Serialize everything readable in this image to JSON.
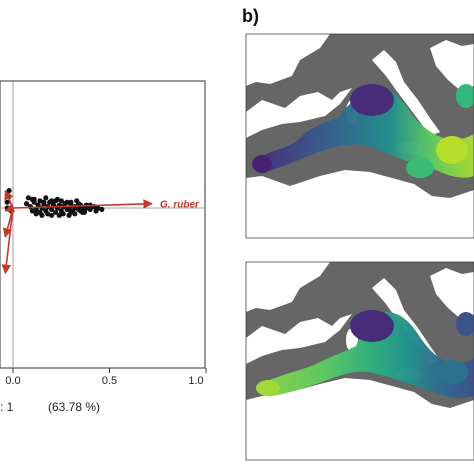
{
  "panel_b_label": "b)",
  "arrow_color": "#c0392b",
  "map_sea_color": "#666666",
  "map_land_color": "#ffffff",
  "chart_data": {
    "type": "scatter",
    "title": "",
    "xlabel_fragment": ": 1",
    "xlabel_percent": "(63.78 %)",
    "xticks": [
      {
        "v": 0.0,
        "label": "0.0"
      },
      {
        "v": 0.5,
        "label": "0.5"
      },
      {
        "v": 1.0,
        "label": "1.0"
      }
    ],
    "xlim": [
      -0.04,
      1.0
    ],
    "ylim": [
      -1.0,
      1.0
    ],
    "grid": false,
    "points": {
      "x": [
        0.07,
        0.09,
        0.1,
        0.11,
        0.12,
        0.13,
        0.14,
        0.15,
        0.16,
        0.17,
        0.18,
        0.19,
        0.2,
        0.21,
        0.22,
        0.23,
        0.24,
        0.25,
        0.26,
        0.27,
        0.28,
        0.29,
        0.3,
        0.31,
        0.32,
        0.33,
        0.34,
        0.35,
        0.36,
        0.37,
        0.38,
        0.39,
        0.4,
        0.42,
        0.44,
        0.46,
        0.1,
        0.14,
        0.18,
        0.22,
        0.26,
        0.3,
        0.34,
        0.38,
        0.12,
        0.16,
        0.2,
        0.24,
        0.28,
        0.32,
        0.36,
        0.4,
        0.15,
        0.2,
        0.25,
        0.3,
        0.35,
        0.08,
        0.11,
        0.17,
        0.23,
        0.29,
        0.33,
        0.37,
        0.43,
        -0.02,
        -0.03,
        -0.01,
        -0.02,
        -0.03
      ],
      "y": [
        0.03,
        0.01,
        -0.02,
        0.04,
        -0.01,
        0.02,
        -0.03,
        0.0,
        0.03,
        -0.02,
        0.01,
        0.04,
        -0.01,
        0.02,
        -0.03,
        0.0,
        0.02,
        -0.02,
        0.01,
        0.03,
        -0.01,
        0.0,
        0.02,
        -0.02,
        0.01,
        0.0,
        -0.01,
        0.02,
        0.0,
        -0.02,
        0.01,
        0.0,
        -0.01,
        0.01,
        0.0,
        -0.01,
        0.06,
        0.05,
        -0.04,
        0.05,
        -0.04,
        -0.03,
        0.03,
        0.02,
        -0.04,
        0.04,
        0.05,
        -0.05,
        0.04,
        -0.04,
        -0.03,
        0.02,
        -0.05,
        -0.05,
        0.05,
        0.04,
        -0.02,
        0.07,
        0.06,
        0.07,
        0.06,
        -0.05,
        0.05,
        -0.03,
        -0.02,
        0.08,
        0.04,
        -0.02,
        0.12,
        0.0
      ]
    },
    "arrows": [
      {
        "label": "G. ruber",
        "x": 0.72,
        "y": 0.03
      },
      {
        "label": "",
        "x": -0.04,
        "y": 0.12
      },
      {
        "label": "",
        "x": -0.04,
        "y": -0.02
      },
      {
        "label": "",
        "x": -0.04,
        "y": -0.2
      },
      {
        "label": "",
        "x": -0.04,
        "y": -0.45
      }
    ]
  }
}
